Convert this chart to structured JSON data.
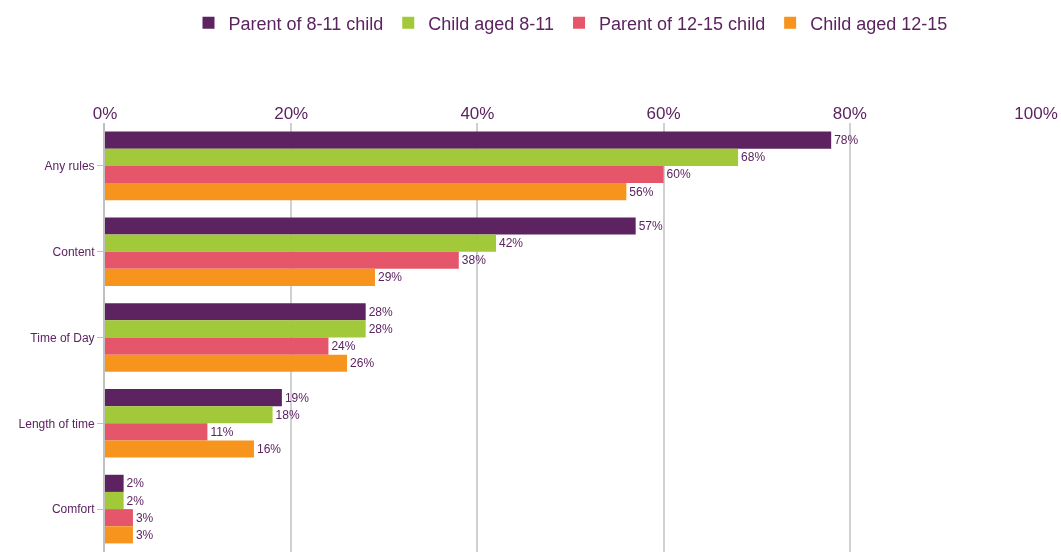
{
  "chart_data": {
    "type": "bar",
    "orientation": "horizontal",
    "categories": [
      "Any rules",
      "Content",
      "Time of Day",
      "Length of time",
      "Comfort"
    ],
    "series": [
      {
        "name": "Parent of 8-11 child",
        "color": "#5c2360",
        "values": [
          78,
          57,
          28,
          19,
          2
        ],
        "value_labels": [
          "78%",
          "57%",
          "28%",
          "19%",
          "2%"
        ]
      },
      {
        "name": "Child aged 8-11",
        "color": "#a2c93a",
        "values": [
          68,
          42,
          28,
          18,
          2
        ],
        "value_labels": [
          "68%",
          "42%",
          "28%",
          "18%",
          "2%"
        ]
      },
      {
        "name": "Parent of 12-15 child",
        "color": "#e5566a",
        "values": [
          60,
          38,
          24,
          11,
          3
        ],
        "value_labels": [
          "60%",
          "38%",
          "24%",
          "11%",
          "3%"
        ]
      },
      {
        "name": "Child aged 12-15",
        "color": "#f7941d",
        "values": [
          56,
          29,
          26,
          16,
          3
        ],
        "value_labels": [
          "56%",
          "29%",
          "26%",
          "16%",
          "3%"
        ]
      }
    ],
    "xlim": [
      0,
      100
    ],
    "xticks": [
      {
        "value": 0,
        "label": "0%"
      },
      {
        "value": 20,
        "label": "20%"
      },
      {
        "value": 40,
        "label": "40%"
      },
      {
        "value": 60,
        "label": "60%"
      },
      {
        "value": 80,
        "label": "80%"
      },
      {
        "value": 100,
        "label": "100%"
      }
    ],
    "grid": "x",
    "legend": "top"
  }
}
